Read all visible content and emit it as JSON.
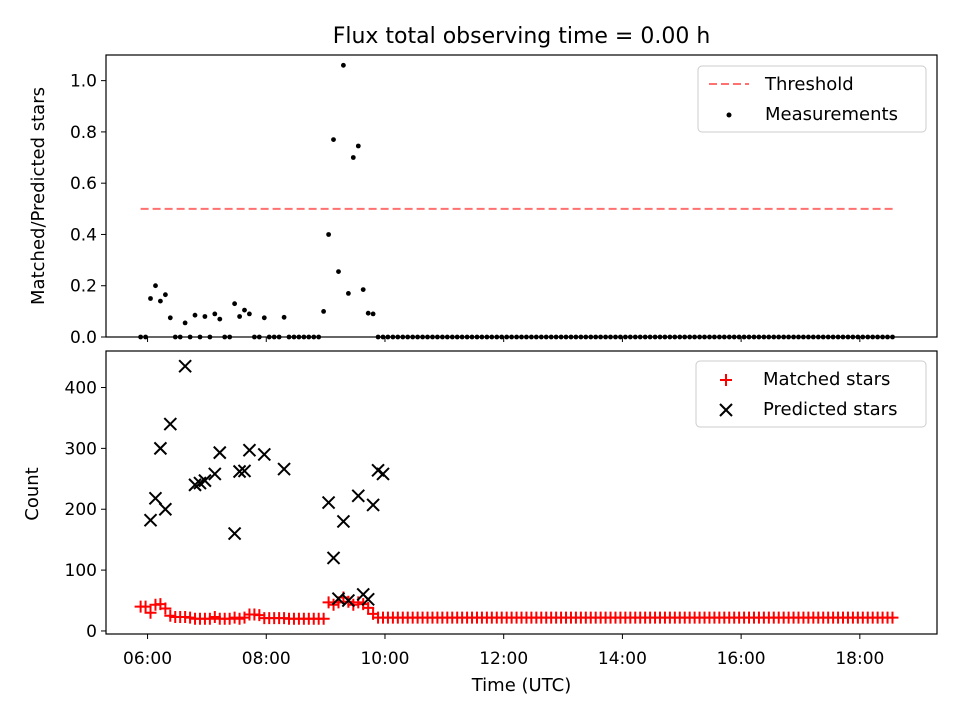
{
  "chart_data": [
    {
      "type": "scatter",
      "title": "Flux total observing time = 0.00 h",
      "xlabel": "",
      "ylabel": "Matched/Predicted stars",
      "xlim": [
        "05:18",
        "19:18"
      ],
      "ylim": [
        0,
        1.1
      ],
      "yticks": [
        "0.0",
        "0.2",
        "0.4",
        "0.6",
        "0.8",
        "1.0"
      ],
      "legend_position": "upper right",
      "threshold": {
        "name": "Threshold",
        "value": 0.5,
        "x_range": [
          "05:53",
          "18:37"
        ],
        "color": "#ff7070",
        "style": "dashed"
      },
      "series": [
        {
          "name": "Measurements",
          "color": "#000000",
          "marker": "dot",
          "x": [
            "05:53",
            "05:58",
            "06:03",
            "06:08",
            "06:13",
            "06:18",
            "06:23",
            "06:28",
            "06:33",
            "06:38",
            "06:43",
            "06:48",
            "06:53",
            "06:58",
            "07:03",
            "07:08",
            "07:13",
            "07:18",
            "07:23",
            "07:28",
            "07:33",
            "07:38",
            "07:43",
            "07:48",
            "07:53",
            "07:58",
            "08:03",
            "08:08",
            "08:13",
            "08:18",
            "08:23",
            "08:28",
            "08:33",
            "08:38",
            "08:43",
            "08:48",
            "08:53",
            "08:58",
            "09:03",
            "09:08",
            "09:13",
            "09:18",
            "09:23",
            "09:28",
            "09:33",
            "09:38",
            "09:43",
            "09:48",
            "09:53",
            "09:58"
          ],
          "y": [
            0,
            0,
            0.15,
            0.2,
            0.14,
            0.165,
            0.075,
            0,
            0,
            0.055,
            0,
            0.085,
            0,
            0.08,
            0,
            0.09,
            0.07,
            0,
            0,
            0.13,
            0.08,
            0.105,
            0.09,
            0,
            0,
            0.075,
            0,
            0,
            0,
            0.077,
            0,
            0,
            0,
            0,
            0,
            0,
            0,
            0.1,
            0.4,
            0.77,
            0.255,
            1.06,
            0.17,
            0.7,
            0.745,
            0.185,
            0.093,
            0.09,
            0,
            0
          ],
          "y_trailing_value": 0,
          "x_trailing_range": [
            "09:58",
            "18:37"
          ],
          "x_trailing_step_minutes": 5
        }
      ]
    },
    {
      "type": "scatter",
      "title": "",
      "xlabel": "Time (UTC)",
      "ylabel": "Count",
      "xlim": [
        "05:18",
        "19:18"
      ],
      "ylim": [
        -5,
        460
      ],
      "yticks": [
        "0",
        "100",
        "200",
        "300",
        "400"
      ],
      "xticks": [
        "06:00",
        "08:00",
        "10:00",
        "12:00",
        "14:00",
        "16:00",
        "18:00"
      ],
      "legend_position": "upper right",
      "series": [
        {
          "name": "Matched stars",
          "color": "#ff0000",
          "marker": "plus",
          "x": [
            "05:53",
            "05:58",
            "06:03",
            "06:08",
            "06:13",
            "06:18",
            "06:23",
            "06:28",
            "06:33",
            "06:38",
            "06:43",
            "06:48",
            "06:53",
            "06:58",
            "07:03",
            "07:08",
            "07:13",
            "07:18",
            "07:23",
            "07:28",
            "07:33",
            "07:38",
            "07:43",
            "07:48",
            "07:53",
            "07:58",
            "08:03",
            "08:08",
            "08:13",
            "08:18",
            "08:23",
            "08:28",
            "08:33",
            "08:38",
            "08:43",
            "08:48",
            "08:53",
            "08:58",
            "09:03",
            "09:08",
            "09:13",
            "09:18",
            "09:23",
            "09:28",
            "09:33",
            "09:38",
            "09:43",
            "09:48",
            "09:53",
            "09:58"
          ],
          "y": [
            40,
            40,
            30,
            43,
            44,
            37,
            25,
            23,
            23,
            23,
            22,
            20,
            20,
            20,
            20,
            23,
            20,
            20,
            20,
            22,
            20,
            22,
            27,
            27,
            26,
            21,
            21,
            21,
            21,
            21,
            20,
            20,
            20,
            20,
            20,
            20,
            20,
            20,
            47,
            43,
            47,
            55,
            48,
            43,
            47,
            44,
            38,
            28,
            22,
            22
          ],
          "y_trailing_value": 22,
          "x_trailing_range": [
            "09:58",
            "18:37"
          ],
          "x_trailing_step_minutes": 5
        },
        {
          "name": "Predicted stars",
          "color": "#000000",
          "marker": "x",
          "x": [
            "06:03",
            "06:08",
            "06:13",
            "06:18",
            "06:23",
            "06:38",
            "06:48",
            "06:53",
            "06:58",
            "07:08",
            "07:13",
            "07:28",
            "07:33",
            "07:38",
            "07:43",
            "07:58",
            "08:18",
            "09:03",
            "09:08",
            "09:13",
            "09:18",
            "09:23",
            "09:33",
            "09:38",
            "09:43",
            "09:48",
            "09:53",
            "09:58"
          ],
          "y": [
            182,
            218,
            300,
            200,
            340,
            435,
            240,
            243,
            247,
            258,
            293,
            160,
            262,
            263,
            297,
            290,
            266,
            211,
            120,
            53,
            180,
            50,
            222,
            60,
            52,
            207,
            264,
            258
          ]
        }
      ]
    }
  ]
}
